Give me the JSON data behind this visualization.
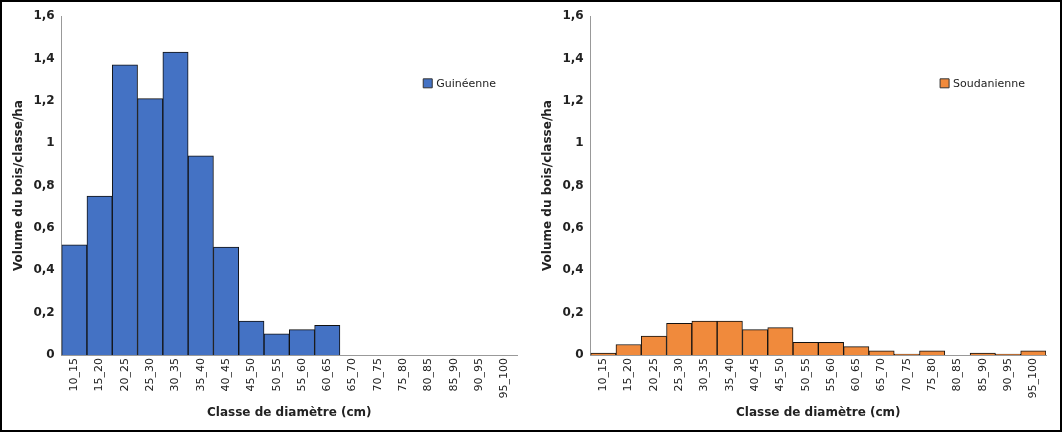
{
  "chart_data": [
    {
      "type": "bar",
      "xlabel": "Classe de diamètre (cm)",
      "ylabel": "Volume du bois/classe/ha",
      "categories": [
        "10_15",
        "15_20",
        "20_25",
        "25_30",
        "30_35",
        "35_40",
        "40_45",
        "45_50",
        "50_55",
        "55_60",
        "60_65",
        "65_70",
        "70_75",
        "75_80",
        "80_85",
        "85_90",
        "90_95",
        "95_100"
      ],
      "series": [
        {
          "name": "Guinéenne",
          "color": "#4472c4",
          "values": [
            0.52,
            0.75,
            1.37,
            1.21,
            1.43,
            0.94,
            0.51,
            0.16,
            0.1,
            0.12,
            0.14,
            0,
            0,
            0,
            0,
            0,
            0,
            0
          ]
        }
      ],
      "ylim": [
        0,
        1.6
      ],
      "yticks": [
        {
          "value": 0,
          "label": "0"
        },
        {
          "value": 0.2,
          "label": "0,2"
        },
        {
          "value": 0.4,
          "label": "0,4"
        },
        {
          "value": 0.6,
          "label": "0,6"
        },
        {
          "value": 0.8,
          "label": "0,8"
        },
        {
          "value": 1,
          "label": "1"
        },
        {
          "value": 1.2,
          "label": "1,2"
        },
        {
          "value": 1.4,
          "label": "1,4"
        },
        {
          "value": 1.6,
          "label": "1,6"
        }
      ],
      "grid": false,
      "legend": "top right"
    },
    {
      "type": "bar",
      "xlabel": "Classe de diamètre (cm)",
      "ylabel": "Volume du bois/classe/ha",
      "categories": [
        "10_15",
        "15_20",
        "20_25",
        "25_30",
        "30_35",
        "35_40",
        "40_45",
        "45_50",
        "50_55",
        "55_60",
        "60_65",
        "65_70",
        "70_75",
        "75_80",
        "80_85",
        "85_90",
        "90_95",
        "95_100"
      ],
      "series": [
        {
          "name": "Soudanienne",
          "color": "#f08a3c",
          "values": [
            0.01,
            0.05,
            0.09,
            0.15,
            0.16,
            0.16,
            0.12,
            0.13,
            0.06,
            0.06,
            0.04,
            0.02,
            0.005,
            0.02,
            null,
            0.01,
            0.005,
            0.02
          ]
        }
      ],
      "ylim": [
        0,
        1.6
      ],
      "yticks": [
        {
          "value": 0,
          "label": "0"
        },
        {
          "value": 0.2,
          "label": "0,2"
        },
        {
          "value": 0.4,
          "label": "0,4"
        },
        {
          "value": 0.6,
          "label": "0,6"
        },
        {
          "value": 0.8,
          "label": "0,8"
        },
        {
          "value": 1,
          "label": "1"
        },
        {
          "value": 1.2,
          "label": "1,2"
        },
        {
          "value": 1.4,
          "label": "1,4"
        },
        {
          "value": 1.6,
          "label": "1,6"
        }
      ],
      "grid": false,
      "legend": "top right"
    }
  ]
}
